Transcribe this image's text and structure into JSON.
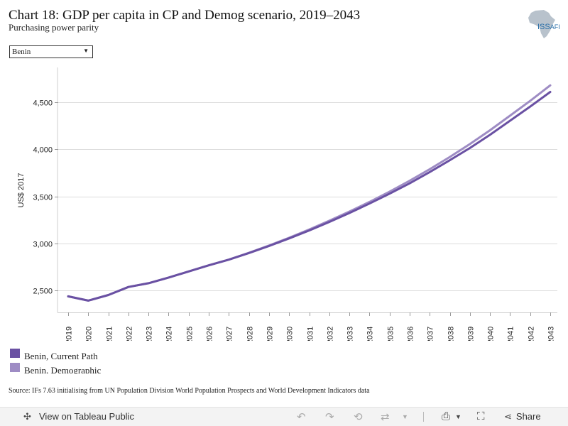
{
  "header": {
    "title": "Chart 18: GDP per capita in CP and Demog scenario, 2019–2043",
    "subtitle": "Purchasing power parity"
  },
  "logo": {
    "text": "ISS",
    "sub": "AFI"
  },
  "filter": {
    "selected": "Benin"
  },
  "source": "Source: IFs 7.63 initialising from UN Population Division World Population Prospects and World Development Indicators data",
  "toolbar": {
    "view_label": "View on Tableau Public",
    "share_label": "Share"
  },
  "colors": {
    "current_path": "#6a51a3",
    "demographic": "#9e8cc4"
  },
  "chart_data": {
    "type": "line",
    "title": "Chart 18: GDP per capita in CP and Demog scenario, 2019–2043",
    "ylabel": "US$ 2017",
    "xlabel": "",
    "x": [
      "2019",
      "2020",
      "2021",
      "2022",
      "2023",
      "2024",
      "2025",
      "2026",
      "2027",
      "2028",
      "2029",
      "2030",
      "2031",
      "2032",
      "2033",
      "2034",
      "2035",
      "2036",
      "2037",
      "2038",
      "2039",
      "2040",
      "2041",
      "2042",
      "2043"
    ],
    "ylim": [
      2270,
      4870
    ],
    "yticks": [
      2500,
      3000,
      3500,
      4000,
      4500
    ],
    "ytick_labels": [
      "2,500",
      "3,000",
      "3,500",
      "4,000",
      "4,500"
    ],
    "grid": true,
    "legend": "bottom-left",
    "series": [
      {
        "name": "Benin, Current Path",
        "color": "#6a51a3",
        "values": [
          2440,
          2395,
          2455,
          2540,
          2580,
          2640,
          2705,
          2770,
          2830,
          2900,
          2975,
          3055,
          3140,
          3230,
          3325,
          3425,
          3530,
          3640,
          3760,
          3885,
          4015,
          4155,
          4305,
          4455,
          4610
        ]
      },
      {
        "name": "Benin, Demographic",
        "color": "#9e8cc4",
        "values": [
          2440,
          2395,
          2455,
          2540,
          2580,
          2640,
          2705,
          2770,
          2830,
          2903,
          2980,
          3062,
          3150,
          3243,
          3340,
          3443,
          3552,
          3667,
          3790,
          3920,
          4057,
          4203,
          4358,
          4515,
          4680
        ]
      }
    ]
  }
}
